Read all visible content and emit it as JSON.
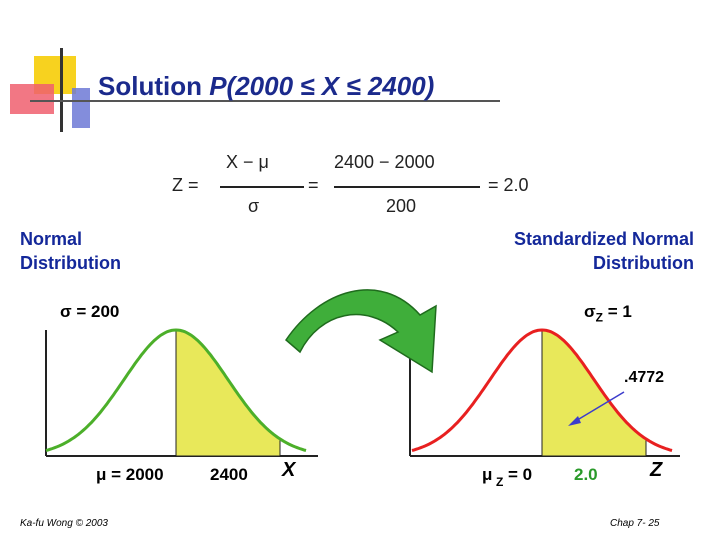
{
  "title": {
    "prefix": "Solution",
    "expr": "P(2000 ≤ X ≤ 2400)"
  },
  "formula": {
    "lhs": "Z =",
    "num1": "X − μ",
    "den1": "σ",
    "eq2": "=",
    "num2": "2400  − 2000",
    "den2": "200",
    "result": "= 2.0"
  },
  "labels": {
    "normal_line1": "Normal",
    "normal_line2": "Distribution",
    "std_line1": "Standardized Normal",
    "std_line2": "Distribution",
    "sigma_left": "σ   = 200",
    "sigma_right": "σ",
    "sigma_right_sub": "Z",
    "sigma_right_val": "= 1",
    "mu_left": "μ  = 2000",
    "x_left_2400": "2400",
    "x_axis_left": "X",
    "mu_right": "μ",
    "mu_right_sub": "Z",
    "mu_right_val": "= 0",
    "x_right_2": "2.0",
    "x_axis_right": "Z",
    "area_label": ".4772"
  },
  "footer": {
    "author": "Ka-fu Wong © 2003",
    "page": "Chap 7- 25"
  },
  "colors": {
    "title": "#1b2a8c",
    "curve_left": "#4caf2a",
    "curve_right": "#e82020",
    "shade": "#e8e85a",
    "arrow": "#3fae3a",
    "pointer": "#3c3ccc"
  },
  "chart_data": [
    {
      "type": "area",
      "title": "Normal Distribution",
      "distribution": "normal",
      "mean": 2000,
      "sd": 200,
      "shaded_interval": [
        2000,
        2400
      ],
      "x_ticks": [
        "μ = 2000",
        "2400"
      ],
      "xlabel": "X"
    },
    {
      "type": "area",
      "title": "Standardized Normal Distribution",
      "distribution": "normal",
      "mean": 0,
      "sd": 1,
      "shaded_interval": [
        0,
        2.0
      ],
      "shaded_area": 0.4772,
      "x_ticks": [
        "μZ = 0",
        "2.0"
      ],
      "xlabel": "Z"
    }
  ]
}
